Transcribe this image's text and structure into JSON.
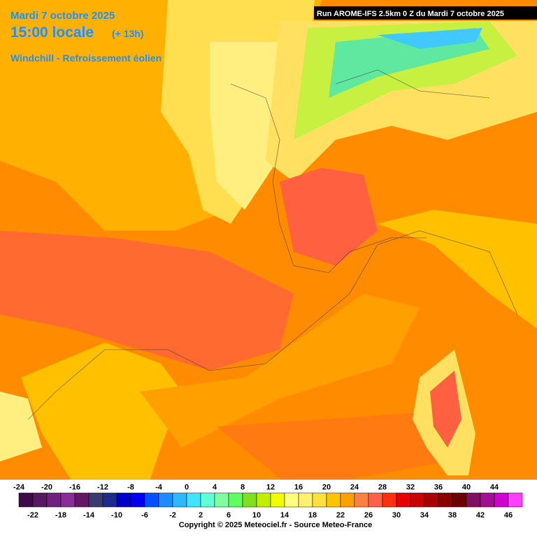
{
  "header": {
    "date": "Mardi 7 octobre 2025",
    "time": "15:00 locale",
    "lead": "(+ 13h)",
    "parameter": "Windchill - Refroissement éolien",
    "run": "Run AROME-IFS 2.5km 0 Z du Mardi 7 octobre 2025"
  },
  "legend": {
    "values": [
      -24,
      -22,
      -20,
      -18,
      -16,
      -14,
      -12,
      -10,
      -8,
      -6,
      -4,
      -2,
      0,
      2,
      4,
      6,
      8,
      10,
      12,
      14,
      16,
      18,
      20,
      22,
      24,
      26,
      28,
      30,
      32,
      34,
      36,
      38,
      40,
      42,
      44,
      46
    ],
    "colors": [
      "#3c0c46",
      "#561a60",
      "#70207e",
      "#8c2c98",
      "#641864",
      "#383c6c",
      "#1c2c8c",
      "#0000c8",
      "#0000f0",
      "#0050ff",
      "#1e8cff",
      "#30b8ff",
      "#40e4ff",
      "#60ffd8",
      "#80ffa0",
      "#60ff60",
      "#80e020",
      "#c0f000",
      "#f0ff00",
      "#ffff80",
      "#fff070",
      "#ffe040",
      "#ffc400",
      "#ffa000",
      "#ff8040",
      "#ff6048",
      "#ff3010",
      "#e80000",
      "#c80000",
      "#a80000",
      "#880000",
      "#6c0000",
      "#801060",
      "#a01090",
      "#d000d0",
      "#ff40ff"
    ]
  },
  "footer": {
    "copyright": "Copyright © 2025 Meteociel.fr - Source Meteo-France"
  }
}
